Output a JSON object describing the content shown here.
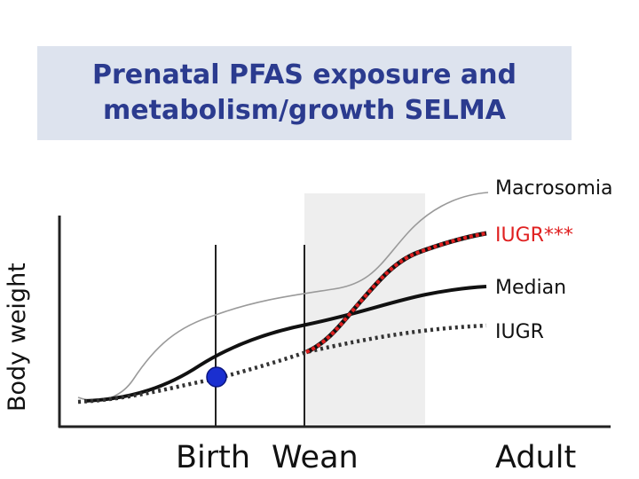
{
  "title": {
    "line1": "Prenatal PFAS exposure and",
    "line2": "metabolism/growth SELMA"
  },
  "axis": {
    "ylabel": "Body weight"
  },
  "curves": {
    "macrosomia": "Macrosomia",
    "iugr_catchup": "IUGR***",
    "median": "Median",
    "iugr": "IUGR"
  },
  "xlabels": {
    "birth": "Birth",
    "wean": "Wean",
    "adult": "Adult"
  },
  "colors": {
    "title_bg": "#dde3ee",
    "title_text": "#2b3b8f",
    "catchup_curve": "#e02020",
    "marker": "#1a2fd0",
    "shaded_region": "#eeeeee"
  }
}
